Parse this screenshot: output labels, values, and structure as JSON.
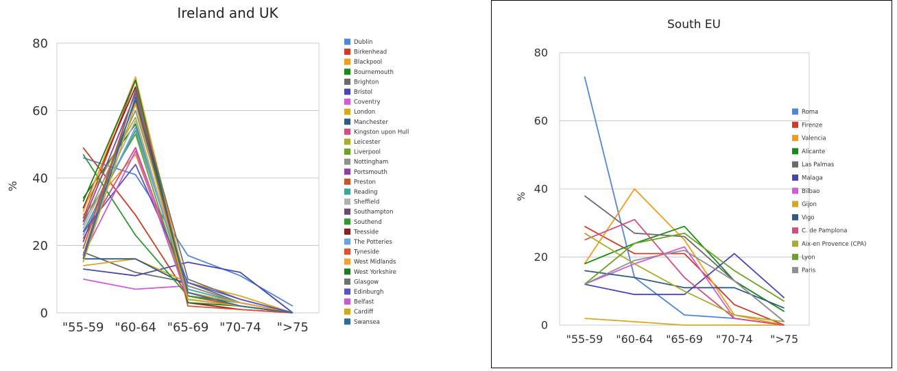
{
  "chart_data": [
    {
      "type": "line",
      "title": "Ireland and UK",
      "xlabel": "",
      "ylabel": "%",
      "ylim": [
        0,
        80
      ],
      "yticks": [
        0,
        20,
        40,
        60,
        80
      ],
      "grid": true,
      "legend_position": "right",
      "categories": [
        "\"55-59",
        "\"60-64",
        "\"65-69",
        "\"70-74",
        "\">75"
      ],
      "series": [
        {
          "name": "Dublin",
          "color": "#4f86dc",
          "values": [
            46,
            41,
            17,
            11,
            2
          ]
        },
        {
          "name": "Birkenhead",
          "color": "#d23a26",
          "values": [
            49,
            29,
            5,
            2,
            0
          ]
        },
        {
          "name": "Blackpool",
          "color": "#f59b17",
          "values": [
            29,
            47,
            6,
            3,
            0
          ]
        },
        {
          "name": "Bournemouth",
          "color": "#168b17",
          "values": [
            34,
            56,
            5,
            3,
            0
          ]
        },
        {
          "name": "Brighton",
          "color": "#6a6a6a",
          "values": [
            18,
            12,
            9,
            3,
            0
          ]
        },
        {
          "name": "Bristol",
          "color": "#4744b6",
          "values": [
            13,
            11,
            15,
            12,
            0
          ]
        },
        {
          "name": "Coventry",
          "color": "#d35ad8",
          "values": [
            10,
            7,
            8,
            3,
            0
          ]
        },
        {
          "name": "London",
          "color": "#d6a91c",
          "values": [
            14,
            16,
            9,
            5,
            0
          ]
        },
        {
          "name": "Manchester",
          "color": "#2f5a87",
          "values": [
            16,
            16,
            8,
            3,
            0
          ]
        },
        {
          "name": "Kingston upon Hull",
          "color": "#d84c7a",
          "values": [
            22,
            49,
            6,
            3,
            0
          ]
        },
        {
          "name": "Leicester",
          "color": "#a9ad2c",
          "values": [
            31,
            58,
            5,
            2,
            0
          ]
        },
        {
          "name": "Liverpool",
          "color": "#6aa222",
          "values": [
            27,
            53,
            4,
            2,
            0
          ]
        },
        {
          "name": "Nottingham",
          "color": "#8f8f8f",
          "values": [
            26,
            60,
            8,
            3,
            0
          ]
        },
        {
          "name": "Portsmouth",
          "color": "#8c3fa0",
          "values": [
            27,
            65,
            6,
            2,
            0
          ]
        },
        {
          "name": "Preston",
          "color": "#c8542a",
          "values": [
            28,
            69,
            5,
            2,
            0
          ]
        },
        {
          "name": "Reading",
          "color": "#39a59a",
          "values": [
            24,
            54,
            7,
            3,
            0
          ]
        },
        {
          "name": "Sheffield",
          "color": "#b0b0b0",
          "values": [
            25,
            57,
            6,
            2,
            0
          ]
        },
        {
          "name": "Southampton",
          "color": "#6b4a72",
          "values": [
            21,
            63,
            4,
            2,
            0
          ]
        },
        {
          "name": "Southend",
          "color": "#2b9a2b",
          "values": [
            47,
            23,
            5,
            3,
            0
          ]
        },
        {
          "name": "Teesside",
          "color": "#8e1e1e",
          "values": [
            31,
            67,
            3,
            1,
            0
          ]
        },
        {
          "name": "The Potteries",
          "color": "#6aa0e8",
          "values": [
            23,
            55,
            6,
            3,
            0
          ]
        },
        {
          "name": "Tyneside",
          "color": "#e0502a",
          "values": [
            19,
            66,
            2,
            1,
            0
          ]
        },
        {
          "name": "West Midlands",
          "color": "#f5a030",
          "values": [
            30,
            70,
            6,
            3,
            0
          ]
        },
        {
          "name": "West Yorkshire",
          "color": "#1e7a1e",
          "values": [
            33,
            69,
            3,
            2,
            0
          ]
        },
        {
          "name": "Glasgow",
          "color": "#707070",
          "values": [
            17,
            66,
            10,
            4,
            0
          ]
        },
        {
          "name": "Edinburgh",
          "color": "#5a52c8",
          "values": [
            24,
            44,
            9,
            4,
            0
          ]
        },
        {
          "name": "Belfast",
          "color": "#c75ad0",
          "values": [
            17,
            48,
            4,
            2,
            0
          ]
        },
        {
          "name": "Cardiff",
          "color": "#d0a820",
          "values": [
            15,
            62,
            4,
            2,
            0
          ]
        },
        {
          "name": "Swansea",
          "color": "#2f6a98",
          "values": [
            16,
            64,
            6,
            2,
            0
          ]
        }
      ]
    },
    {
      "type": "line",
      "title": "South EU",
      "xlabel": "",
      "ylabel": "%",
      "ylim": [
        0,
        80
      ],
      "yticks": [
        0,
        20,
        40,
        60,
        80
      ],
      "grid": true,
      "legend_position": "right",
      "categories": [
        "\"55-59",
        "\"60-64",
        "\"65-69",
        "\"70-74",
        "\">75"
      ],
      "series": [
        {
          "name": "Roma",
          "color": "#4f86dc",
          "values": [
            73,
            14,
            3,
            2,
            0
          ]
        },
        {
          "name": "Firenze",
          "color": "#d23a26",
          "values": [
            29,
            21,
            21,
            6,
            0
          ]
        },
        {
          "name": "Valencia",
          "color": "#f59b17",
          "values": [
            18,
            40,
            25,
            3,
            0
          ]
        },
        {
          "name": "Alicante",
          "color": "#168b17",
          "values": [
            18,
            24,
            29,
            13,
            4
          ]
        },
        {
          "name": "Las Palmas",
          "color": "#6a6a6a",
          "values": [
            38,
            27,
            26,
            13,
            1
          ]
        },
        {
          "name": "Malaga",
          "color": "#4744b6",
          "values": [
            12,
            9,
            9,
            21,
            8
          ]
        },
        {
          "name": "Bilbao",
          "color": "#d35ad8",
          "values": [
            12,
            18,
            23,
            2,
            0
          ]
        },
        {
          "name": "Gijon",
          "color": "#d6a91c",
          "values": [
            2,
            1,
            0,
            0,
            0
          ]
        },
        {
          "name": "Vigo",
          "color": "#2f5a87",
          "values": [
            16,
            14,
            11,
            11,
            5
          ]
        },
        {
          "name": "C. de Pamplona",
          "color": "#d84c7a",
          "values": [
            25,
            31,
            14,
            2,
            0
          ]
        },
        {
          "name": "Aix-en Provence (CPA)",
          "color": "#a9ad2c",
          "values": [
            27,
            18,
            10,
            3,
            1
          ]
        },
        {
          "name": "Lyon",
          "color": "#6aa222",
          "values": [
            12,
            24,
            27,
            16,
            7
          ]
        },
        {
          "name": "Paris",
          "color": "#8f8f8f",
          "values": [
            12,
            19,
            22,
            13,
            1
          ]
        }
      ]
    }
  ]
}
